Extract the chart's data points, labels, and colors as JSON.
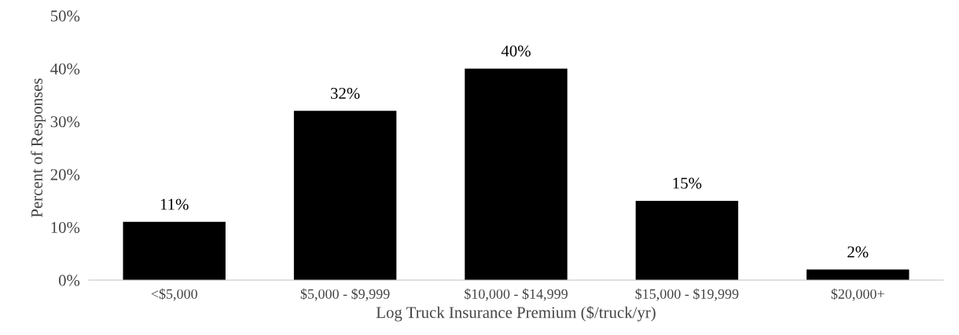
{
  "chart_data": {
    "type": "bar",
    "xlabel": "Log Truck Insurance Premium ($/truck/yr)",
    "ylabel": "Percent of Responses",
    "categories": [
      "<$5,000",
      "$5,000 - $9,999",
      "$10,000 - $14,999",
      "$15,000 - $19,999",
      "$20,000+"
    ],
    "values": [
      11,
      32,
      40,
      15,
      2
    ],
    "value_labels": [
      "11%",
      "32%",
      "40%",
      "15%",
      "2%"
    ],
    "color": "#000000",
    "ylim": [
      0,
      50
    ],
    "yticks": [
      {
        "value": 0,
        "label": "0%"
      },
      {
        "value": 10,
        "label": "10%"
      },
      {
        "value": 20,
        "label": "20%"
      },
      {
        "value": 30,
        "label": "30%"
      },
      {
        "value": 40,
        "label": "40%"
      },
      {
        "value": 50,
        "label": "50%"
      }
    ],
    "grid": false,
    "legend": false
  }
}
